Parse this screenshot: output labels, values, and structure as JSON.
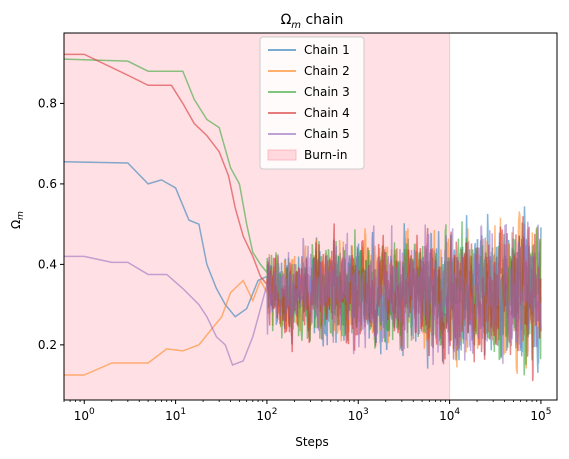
{
  "chart_data": {
    "type": "line",
    "title_main": "Ω",
    "title_sub": "m",
    "title_rest": " chain",
    "xlabel": "Steps",
    "ylabel_main": "Ω",
    "ylabel_sub": "m",
    "xscale": "log",
    "xlim": [
      0.6,
      150000
    ],
    "ylim": [
      0.063,
      0.975
    ],
    "grid": false,
    "legend_position": "top-center",
    "x_ticks": [
      {
        "value": 1,
        "base": "10",
        "exp": "0"
      },
      {
        "value": 10,
        "base": "10",
        "exp": "1"
      },
      {
        "value": 100,
        "base": "10",
        "exp": "2"
      },
      {
        "value": 1000,
        "base": "10",
        "exp": "3"
      },
      {
        "value": 10000,
        "base": "10",
        "exp": "4"
      },
      {
        "value": 100000,
        "base": "10",
        "exp": "5"
      }
    ],
    "y_ticks": [
      {
        "value": 0.2,
        "label": "0.2"
      },
      {
        "value": 0.4,
        "label": "0.4"
      },
      {
        "value": 0.6,
        "label": "0.6"
      },
      {
        "value": 0.8,
        "label": "0.8"
      }
    ],
    "burn_in": {
      "label": "Burn-in",
      "x_start": 0.6,
      "x_end": 10000,
      "color": "#ff9aa8"
    },
    "stationary_band": {
      "center": 0.33,
      "low": 0.17,
      "high": 0.52
    },
    "series": [
      {
        "name": "Chain 1",
        "color": "#1f77b4",
        "points": [
          [
            0,
            0.655
          ],
          [
            3,
            0.652
          ],
          [
            5,
            0.6
          ],
          [
            7,
            0.61
          ],
          [
            10,
            0.59
          ],
          [
            14,
            0.51
          ],
          [
            18,
            0.5
          ],
          [
            22,
            0.4
          ],
          [
            28,
            0.34
          ],
          [
            35,
            0.3
          ],
          [
            45,
            0.27
          ],
          [
            60,
            0.29
          ],
          [
            80,
            0.36
          ],
          [
            100,
            0.37
          ]
        ]
      },
      {
        "name": "Chain 2",
        "color": "#ff7f0e",
        "points": [
          [
            0,
            0.125
          ],
          [
            1,
            0.125
          ],
          [
            2,
            0.155
          ],
          [
            5,
            0.155
          ],
          [
            8,
            0.19
          ],
          [
            12,
            0.185
          ],
          [
            18,
            0.2
          ],
          [
            25,
            0.24
          ],
          [
            32,
            0.27
          ],
          [
            40,
            0.33
          ],
          [
            55,
            0.36
          ],
          [
            70,
            0.31
          ],
          [
            85,
            0.36
          ],
          [
            100,
            0.33
          ]
        ]
      },
      {
        "name": "Chain 3",
        "color": "#2ca02c",
        "points": [
          [
            0,
            0.91
          ],
          [
            3,
            0.905
          ],
          [
            5,
            0.88
          ],
          [
            12,
            0.88
          ],
          [
            16,
            0.81
          ],
          [
            22,
            0.76
          ],
          [
            30,
            0.74
          ],
          [
            40,
            0.64
          ],
          [
            50,
            0.6
          ],
          [
            60,
            0.5
          ],
          [
            70,
            0.43
          ],
          [
            85,
            0.4
          ],
          [
            100,
            0.38
          ]
        ]
      },
      {
        "name": "Chain 4",
        "color": "#d62728",
        "points": [
          [
            0,
            0.922
          ],
          [
            1,
            0.922
          ],
          [
            3,
            0.87
          ],
          [
            5,
            0.845
          ],
          [
            9,
            0.845
          ],
          [
            12,
            0.8
          ],
          [
            16,
            0.75
          ],
          [
            22,
            0.72
          ],
          [
            30,
            0.68
          ],
          [
            38,
            0.62
          ],
          [
            45,
            0.54
          ],
          [
            55,
            0.47
          ],
          [
            70,
            0.42
          ],
          [
            85,
            0.37
          ],
          [
            100,
            0.35
          ]
        ]
      },
      {
        "name": "Chain 5",
        "color": "#9467bd",
        "points": [
          [
            0,
            0.42
          ],
          [
            1,
            0.42
          ],
          [
            2,
            0.405
          ],
          [
            3,
            0.405
          ],
          [
            5,
            0.375
          ],
          [
            8,
            0.375
          ],
          [
            12,
            0.34
          ],
          [
            18,
            0.3
          ],
          [
            22,
            0.27
          ],
          [
            28,
            0.22
          ],
          [
            35,
            0.2
          ],
          [
            42,
            0.15
          ],
          [
            55,
            0.16
          ],
          [
            70,
            0.22
          ],
          [
            85,
            0.29
          ],
          [
            100,
            0.35
          ]
        ]
      }
    ]
  }
}
